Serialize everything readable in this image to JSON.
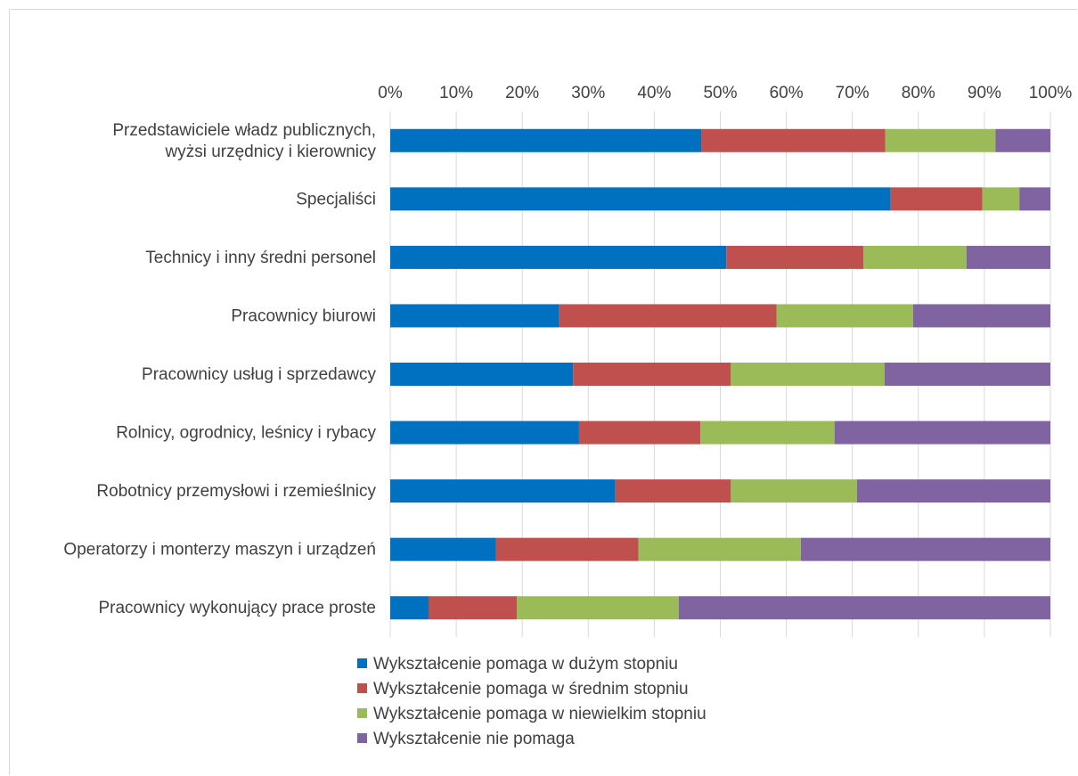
{
  "chart_data": {
    "type": "bar",
    "orientation": "horizontal",
    "stacked": "percent",
    "title": "",
    "xlabel": "",
    "ylabel": "",
    "xlim": [
      0,
      100
    ],
    "x_ticks": [
      "0%",
      "10%",
      "20%",
      "30%",
      "40%",
      "50%",
      "60%",
      "70%",
      "80%",
      "90%",
      "100%"
    ],
    "grid": true,
    "legend_position": "bottom",
    "categories": [
      "Przedstawiciele władz publicznych,|wyżsi urzędnicy i kierownicy",
      "Specjaliści",
      "Technicy i inny średni personel",
      "Pracownicy biurowi",
      "Pracownicy usług i sprzedawcy",
      "Rolnicy, ogrodnicy, leśnicy i rybacy",
      "Robotnicy przemysłowi i rzemieślnicy",
      "Operatorzy i monterzy maszyn  i urządzeń",
      "Pracownicy wykonujący prace proste"
    ],
    "series": [
      {
        "name": "Wykształcenie pomaga w dużym stopniu",
        "color": "#0070C0",
        "values": [
          47.1,
          75.8,
          50.9,
          25.6,
          27.7,
          28.6,
          34.1,
          16.0,
          5.8
        ]
      },
      {
        "name": "Wykształcenie pomaga w średnim stopniu",
        "color": "#C0504D",
        "values": [
          27.9,
          13.9,
          20.8,
          32.9,
          23.9,
          18.4,
          17.5,
          21.6,
          13.4
        ]
      },
      {
        "name": "Wykształcenie pomaga w niewielkim stopniu",
        "color": "#9BBB59",
        "values": [
          16.7,
          5.6,
          15.6,
          20.7,
          23.3,
          20.3,
          19.1,
          24.6,
          24.5
        ]
      },
      {
        "name": "Wykształcenie nie pomaga",
        "color": "#8064A2",
        "values": [
          8.3,
          4.7,
          12.7,
          20.8,
          25.1,
          32.7,
          29.3,
          37.8,
          56.3
        ]
      }
    ]
  }
}
